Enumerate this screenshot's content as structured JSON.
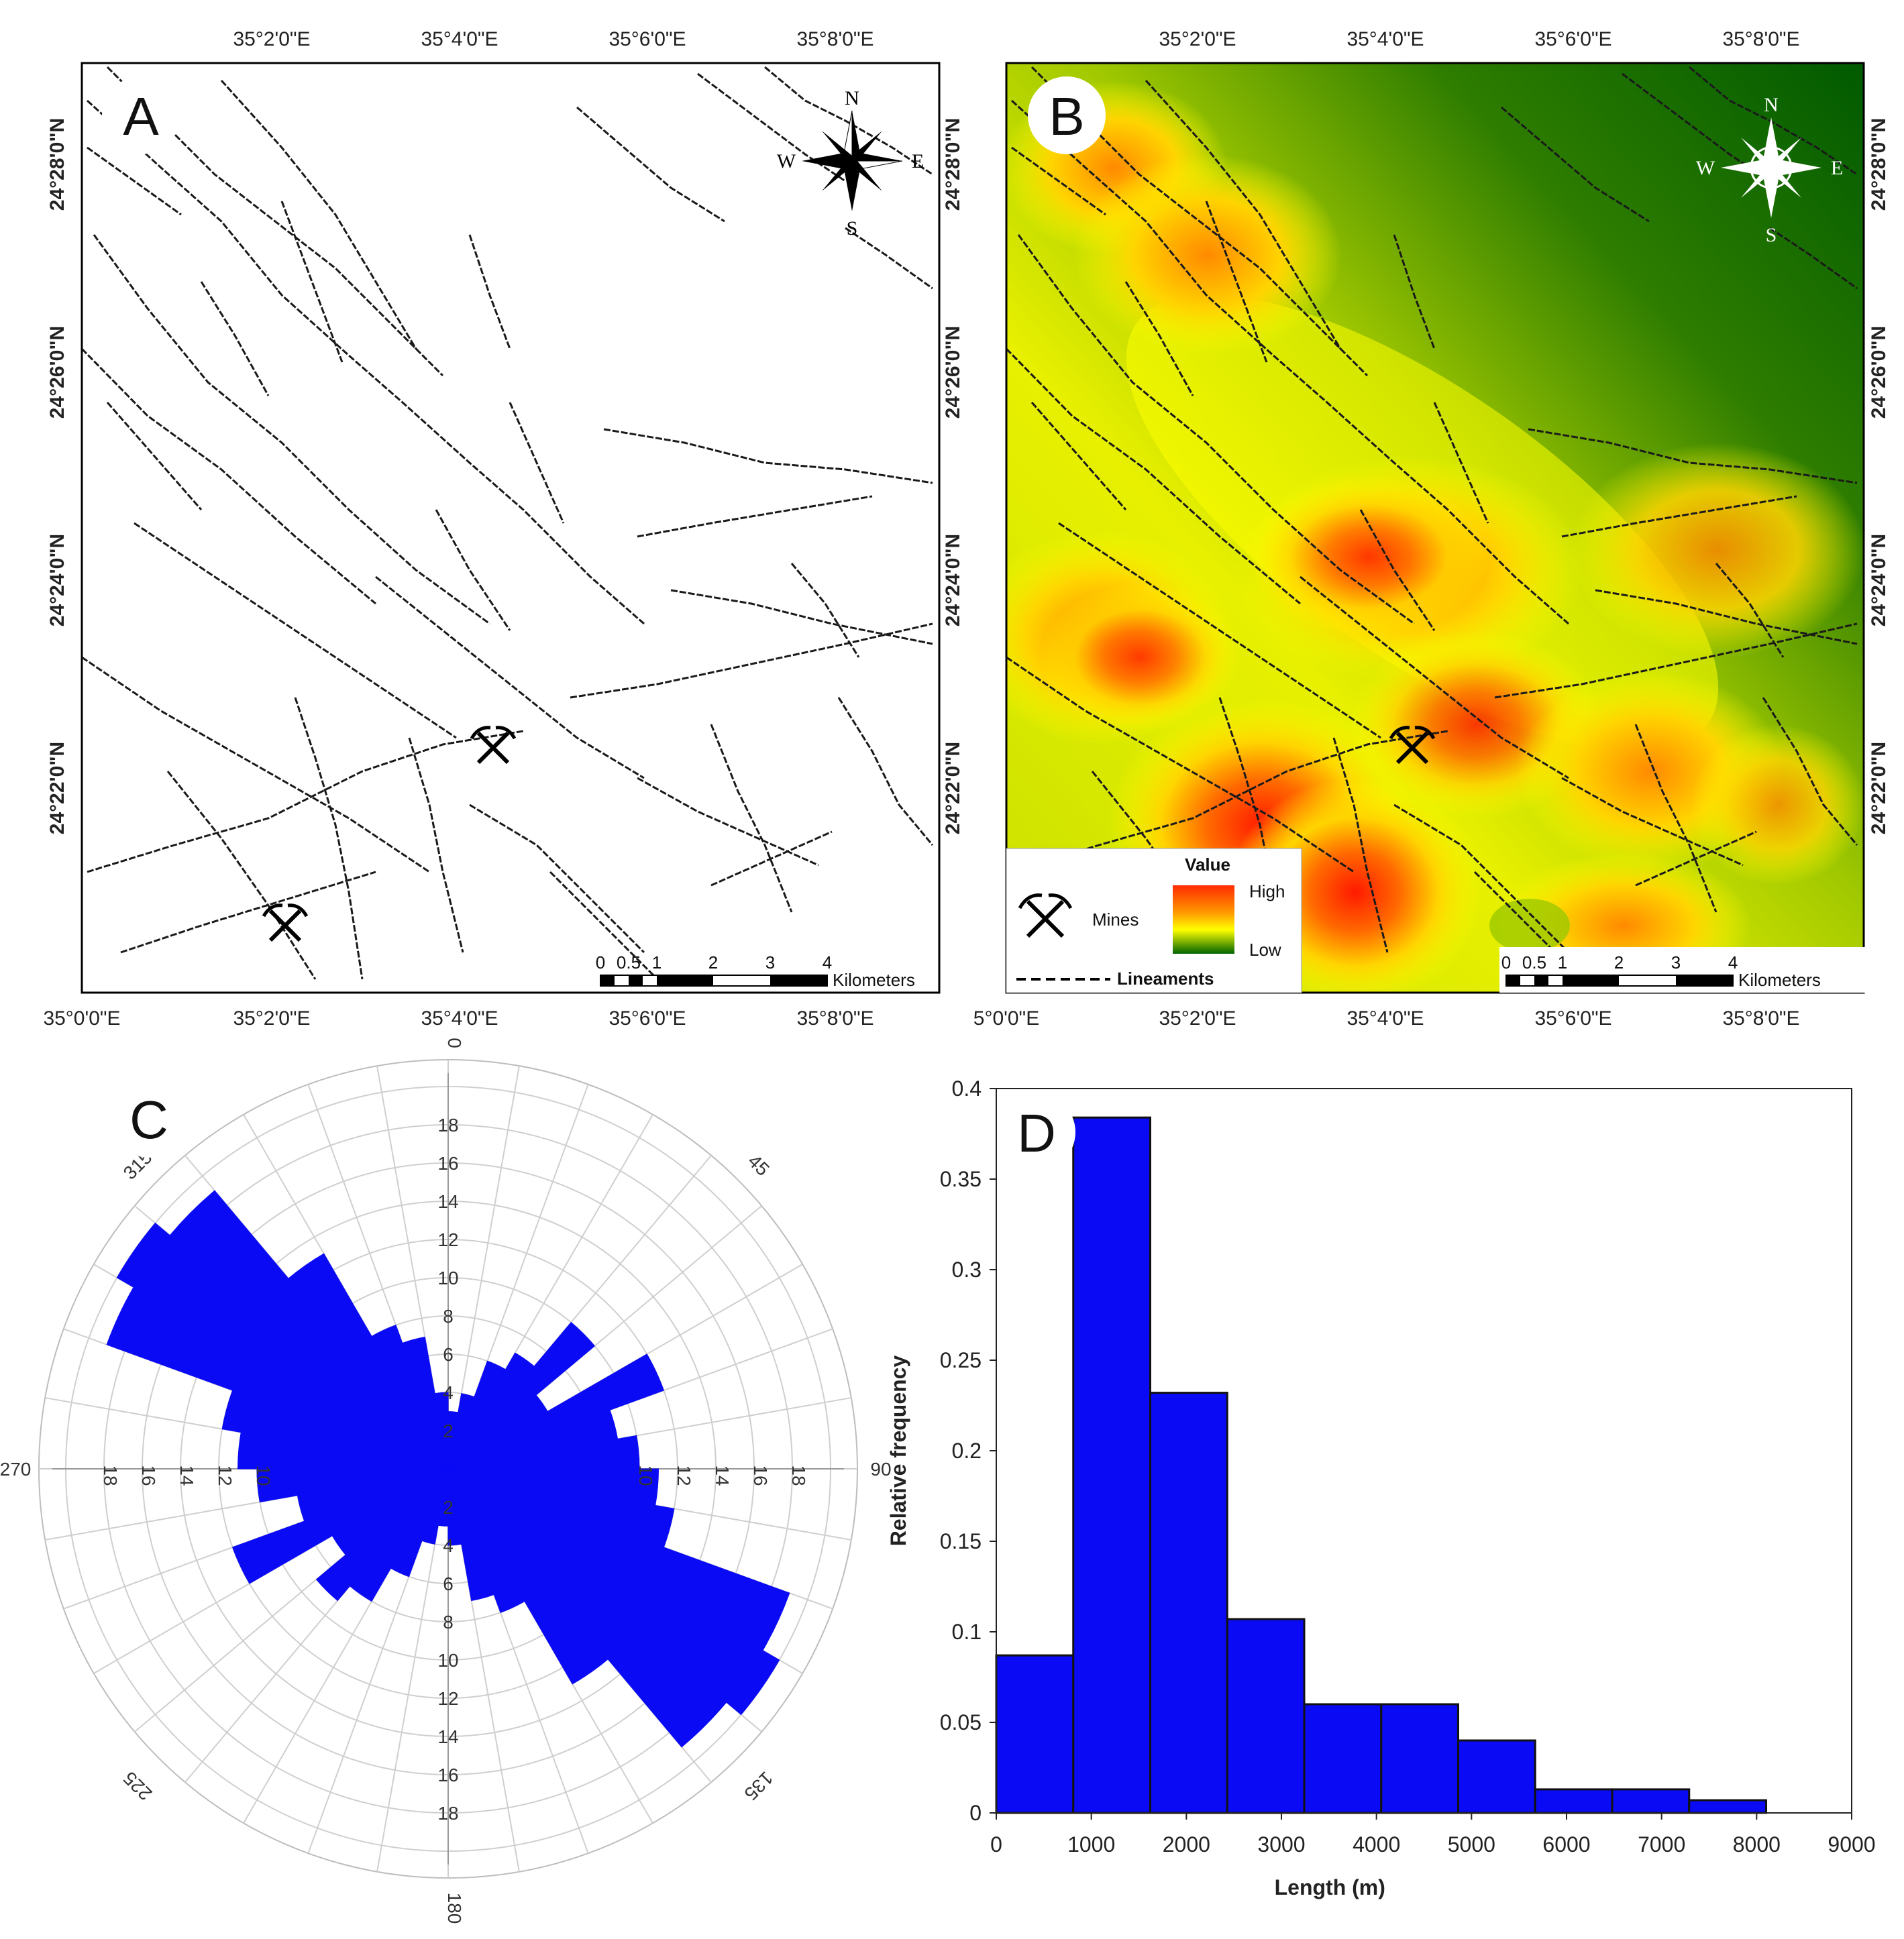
{
  "panels": {
    "a": {
      "letter": "A"
    },
    "b": {
      "letter": "B"
    },
    "c": {
      "letter": "C"
    },
    "d": {
      "letter": "D"
    }
  },
  "map_axes": {
    "lon_labels": [
      "35°2'0\"E",
      "35°4'0\"E",
      "35°6'0\"E",
      "35°8'0\"E"
    ],
    "lon_origin_label_a": "35°0'0\"E",
    "lon_origin_label_b": "5°0'0\"E",
    "lat_labels": [
      "24°28'0\"N",
      "24°26'0\"N",
      "24°24'0\"N",
      "24°22'0\"N"
    ]
  },
  "compass": {
    "n": "N",
    "s": "S",
    "e": "E",
    "w": "W"
  },
  "scale_bar": {
    "ticks": [
      "0",
      "0.5",
      "1",
      "2",
      "3",
      "4"
    ],
    "unit": "Kilometers"
  },
  "legend": {
    "title": "Value",
    "high": "High",
    "low": "Low",
    "mines": "Mines",
    "lineaments": "Lineaments"
  },
  "colors": {
    "rose_fill": "#0a0af5",
    "bar_fill": "#0a0af5",
    "density_high": "#ff1a00",
    "density_mid": "#ffff00",
    "density_low": "#006400"
  },
  "chart_data": [
    {
      "type": "rose",
      "title": "",
      "direction_labels": [
        "0",
        "45",
        "90",
        "135",
        "180",
        "225",
        "270",
        "315"
      ],
      "radial_ticks": [
        "2",
        "4",
        "6",
        "8",
        "10",
        "12",
        "14",
        "16",
        "18"
      ],
      "rmax": 20,
      "bin_width_deg": 10,
      "bins": [
        {
          "from": 0,
          "value": 3
        },
        {
          "from": 10,
          "value": 4
        },
        {
          "from": 20,
          "value": 6
        },
        {
          "from": 30,
          "value": 7
        },
        {
          "from": 40,
          "value": 10
        },
        {
          "from": 50,
          "value": 6
        },
        {
          "from": 60,
          "value": 12
        },
        {
          "from": 70,
          "value": 9
        },
        {
          "from": 80,
          "value": 10
        },
        {
          "from": 90,
          "value": 11
        },
        {
          "from": 100,
          "value": 12
        },
        {
          "from": 110,
          "value": 19
        },
        {
          "from": 120,
          "value": 20
        },
        {
          "from": 130,
          "value": 19
        },
        {
          "from": 140,
          "value": 13
        },
        {
          "from": 150,
          "value": 8
        },
        {
          "from": 160,
          "value": 7
        },
        {
          "from": 170,
          "value": 4
        },
        {
          "from": 180,
          "value": 3
        },
        {
          "from": 190,
          "value": 4
        },
        {
          "from": 200,
          "value": 6
        },
        {
          "from": 210,
          "value": 8
        },
        {
          "from": 220,
          "value": 9
        },
        {
          "from": 230,
          "value": 7
        },
        {
          "from": 240,
          "value": 12
        },
        {
          "from": 250,
          "value": 8
        },
        {
          "from": 260,
          "value": 10
        },
        {
          "from": 270,
          "value": 11
        },
        {
          "from": 280,
          "value": 12
        },
        {
          "from": 290,
          "value": 19
        },
        {
          "from": 300,
          "value": 20
        },
        {
          "from": 310,
          "value": 19
        },
        {
          "from": 320,
          "value": 13
        },
        {
          "from": 330,
          "value": 8
        },
        {
          "from": 340,
          "value": 7
        },
        {
          "from": 350,
          "value": 4
        }
      ]
    },
    {
      "type": "bar",
      "title": "",
      "xlabel": "Length (m)",
      "ylabel": "Relative frequency",
      "xlim": [
        0,
        9000
      ],
      "ylim": [
        0,
        0.4
      ],
      "xticks": [
        "0",
        "1000",
        "2000",
        "3000",
        "4000",
        "5000",
        "6000",
        "7000",
        "8000",
        "9000"
      ],
      "yticks": [
        "0",
        "0.05",
        "0.1",
        "0.15",
        "0.2",
        "0.25",
        "0.3",
        "0.35",
        "0.4"
      ],
      "bins": [
        {
          "x0": 0,
          "x1": 810,
          "value": 0.087
        },
        {
          "x0": 810,
          "x1": 1620,
          "value": 0.384
        },
        {
          "x0": 1620,
          "x1": 2430,
          "value": 0.232
        },
        {
          "x0": 2430,
          "x1": 3240,
          "value": 0.107
        },
        {
          "x0": 3240,
          "x1": 4050,
          "value": 0.06
        },
        {
          "x0": 4050,
          "x1": 4860,
          "value": 0.06
        },
        {
          "x0": 4860,
          "x1": 5670,
          "value": 0.04
        },
        {
          "x0": 5670,
          "x1": 6480,
          "value": 0.013
        },
        {
          "x0": 6480,
          "x1": 7290,
          "value": 0.013
        },
        {
          "x0": 7290,
          "x1": 8100,
          "value": 0.007
        },
        {
          "x0": 8100,
          "x1": 8910,
          "value": 0
        }
      ]
    }
  ]
}
